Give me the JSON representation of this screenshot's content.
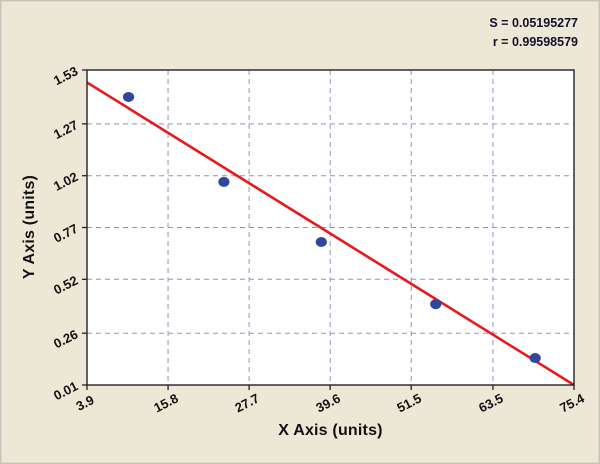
{
  "chart_data": {
    "type": "scatter",
    "title": "",
    "xlabel": "X Axis (units)",
    "ylabel": "Y Axis (units)",
    "xlim": [
      3.9,
      75.4
    ],
    "ylim": [
      0.01,
      1.53
    ],
    "x_ticks": [
      "3.9",
      "15.8",
      "27.7",
      "39.6",
      "51.5",
      "63.5",
      "75.4"
    ],
    "y_ticks": [
      "0.01",
      "0.26",
      "0.52",
      "0.77",
      "1.02",
      "1.27",
      "1.53"
    ],
    "grid": true,
    "legend": false,
    "annotations": [
      "S = 0.05195277",
      "r = 0.99598579"
    ],
    "points": [
      {
        "x": 10.0,
        "y": 1.4
      },
      {
        "x": 24.0,
        "y": 0.99
      },
      {
        "x": 38.3,
        "y": 0.7
      },
      {
        "x": 55.1,
        "y": 0.4
      },
      {
        "x": 69.7,
        "y": 0.14
      }
    ],
    "fit_line": {
      "x1": 3.9,
      "y1": 1.47,
      "x2": 75.4,
      "y2": 0.01
    },
    "colors": {
      "background": "#EDE8D6",
      "plot_bg": "#FFFFFF",
      "grid": "#8C96BC",
      "fit_line": "#E8191C",
      "point": "#31479E",
      "text": "#111111",
      "axis": "#222222"
    }
  }
}
